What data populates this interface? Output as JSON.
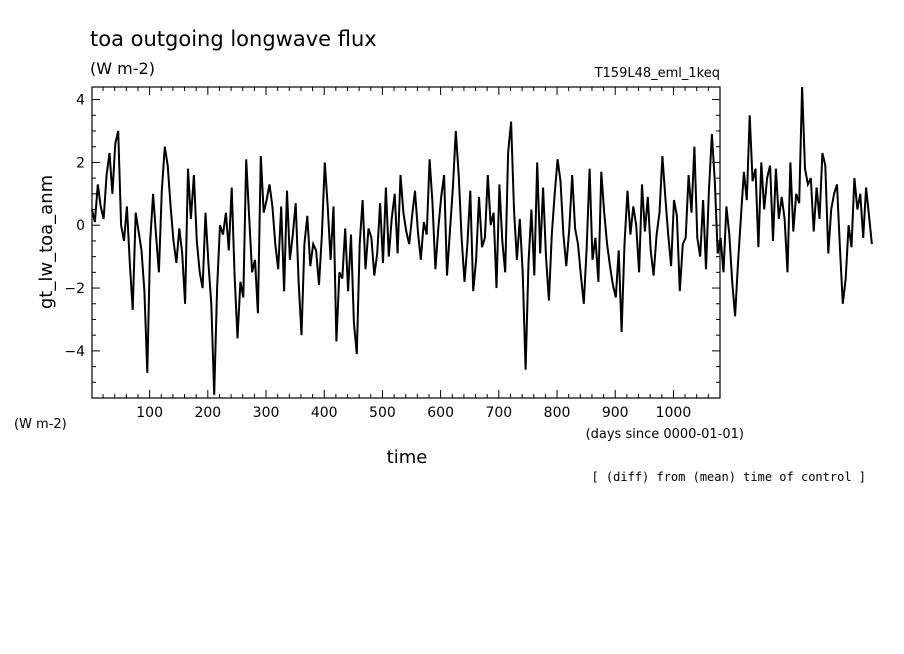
{
  "chart_data": {
    "type": "line",
    "title": "toa outgoing longwave flux",
    "units": "(W m-2)",
    "experiment": "T159L48_eml_1keq",
    "ylabel": "gt_lw_toa_anm",
    "yunits": "(W m-2)",
    "xlabel": "time",
    "xunits": "(days since 0000-01-01)",
    "note": "[ (diff) from (mean) time of control ]",
    "xlim": [
      1,
      1080
    ],
    "ylim": [
      -5.5,
      4.4
    ],
    "x_ticks": [
      100,
      200,
      300,
      400,
      500,
      600,
      700,
      800,
      900,
      1000
    ],
    "y_ticks": [
      -4,
      -2,
      0,
      2,
      4
    ],
    "grid": false,
    "legend": "none",
    "line_color": "#000000",
    "series": [
      {
        "x_start": 1,
        "x_step": 5,
        "values": [
          0.5,
          0.1,
          1.3,
          0.6,
          0.2,
          1.6,
          2.3,
          1.0,
          2.6,
          3.0,
          0.0,
          -0.5,
          0.6,
          -1.2,
          -2.7,
          0.4,
          -0.2,
          -0.8,
          -2.1,
          -4.7,
          -0.5,
          1.0,
          -0.3,
          -1.5,
          1.1,
          2.5,
          1.9,
          0.6,
          -0.5,
          -1.2,
          -0.1,
          -0.9,
          -2.5,
          1.8,
          0.2,
          1.6,
          -0.5,
          -1.5,
          -2.0,
          0.4,
          -1.2,
          -2.5,
          -5.4,
          -2.0,
          0.0,
          -0.3,
          0.4,
          -0.8,
          1.2,
          -1.6,
          -3.6,
          -1.8,
          -2.3,
          2.1,
          0.3,
          -1.5,
          -1.1,
          -2.8,
          2.2,
          0.4,
          0.8,
          1.3,
          0.6,
          -0.6,
          -1.4,
          0.6,
          -2.1,
          1.1,
          -1.1,
          -0.3,
          0.7,
          -1.8,
          -3.5,
          -0.6,
          0.3,
          -1.3,
          -0.6,
          -0.8,
          -1.9,
          -0.3,
          2.0,
          0.6,
          -1.1,
          0.6,
          -3.7,
          -1.5,
          -1.7,
          -0.1,
          -2.1,
          -0.3,
          -3.1,
          -4.1,
          -0.6,
          0.8,
          -1.4,
          -0.1,
          -0.4,
          -1.6,
          -0.9,
          0.7,
          -1.2,
          1.2,
          -1.0,
          0.2,
          1.0,
          -0.9,
          1.6,
          0.4,
          -0.2,
          -0.6,
          0.3,
          1.1,
          -0.2,
          -1.1,
          0.1,
          -0.3,
          2.1,
          0.7,
          -1.4,
          -0.1,
          0.9,
          1.6,
          -1.6,
          -0.2,
          1.2,
          3.0,
          1.6,
          -0.4,
          -1.8,
          -0.6,
          1.1,
          -2.1,
          -1.1,
          0.9,
          -0.7,
          -0.4,
          1.6,
          0.0,
          0.4,
          -2.0,
          1.3,
          -0.5,
          -1.5,
          2.3,
          3.3,
          0.5,
          -1.1,
          0.2,
          -1.5,
          -4.6,
          -1.2,
          0.5,
          -1.6,
          2.0,
          -0.9,
          1.2,
          -1.0,
          -2.4,
          -0.3,
          1.0,
          2.1,
          1.4,
          -0.3,
          -1.3,
          -0.1,
          1.6,
          -0.1,
          -0.6,
          -1.6,
          -2.5,
          -0.7,
          1.8,
          -1.1,
          -0.4,
          -1.8,
          1.7,
          0.4,
          -0.6,
          -1.3,
          -1.9,
          -2.3,
          -0.8,
          -3.4,
          -0.6,
          1.1,
          -0.3,
          0.6,
          0.0,
          -1.5,
          1.3,
          -0.2,
          0.9,
          -0.8,
          -1.6,
          -0.3,
          0.4,
          2.2,
          0.9,
          -0.3,
          -1.3,
          0.8,
          0.3,
          -2.1,
          -0.6,
          -0.4,
          1.6,
          0.4,
          2.5,
          -0.4,
          -1.0,
          0.8,
          -1.4,
          1.1,
          2.9,
          1.4,
          -0.9,
          -0.4,
          -1.5,
          0.6,
          -0.3,
          -1.8,
          -2.9,
          -1.2,
          0.3,
          1.7,
          0.8,
          3.5,
          1.4,
          1.8,
          -0.7,
          2.0,
          0.5,
          1.5,
          1.9,
          -0.5,
          1.8,
          0.2,
          0.9,
          0.2,
          -1.5,
          2.0,
          -0.2,
          1.0,
          0.7,
          4.4,
          1.8,
          1.3,
          1.5,
          -0.2,
          1.2,
          0.2,
          2.3,
          1.9,
          -0.9,
          0.5,
          1.0,
          1.3,
          -0.7,
          -2.5,
          -1.7,
          0.0,
          -0.7,
          1.5,
          0.5,
          1.0,
          -0.4,
          1.2,
          0.3,
          -0.6
        ]
      }
    ]
  }
}
